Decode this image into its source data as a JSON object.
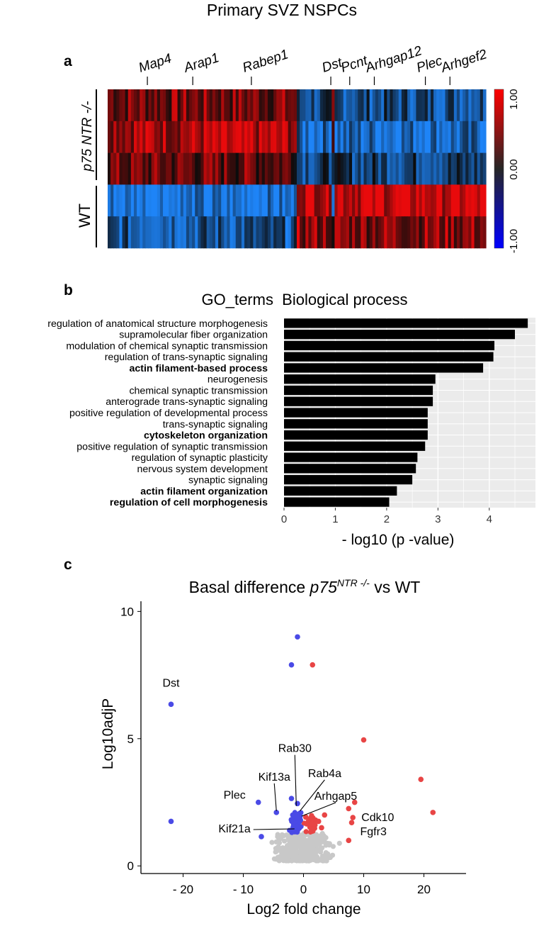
{
  "figure_title": "Primary SVZ NSPCs",
  "panel_labels": {
    "a": "a",
    "b": "b",
    "c": "c"
  },
  "chart_data": [
    {
      "type": "heatmap",
      "panel": "a",
      "title": "Primary SVZ NSPCs",
      "gene_labels": [
        "Map4",
        "Arap1",
        "Rabep1",
        "Dst",
        "Pcnt",
        "Arhgap12",
        "Plec",
        "Arhgef2"
      ],
      "gene_label_positions": [
        0.105,
        0.225,
        0.38,
        0.59,
        0.64,
        0.705,
        0.84,
        0.905
      ],
      "group_labels": [
        "p75 NTR -/-",
        "WT"
      ],
      "row_groups": [
        3,
        2
      ],
      "row_tone": [
        0.3,
        0.45,
        0.25,
        -0.55,
        -0.35
      ],
      "column_pattern": [
        {
          "from": 0.0,
          "to": 0.5,
          "sign": 1
        },
        {
          "from": 0.5,
          "to": 0.59,
          "sign": -1
        },
        {
          "from": 0.59,
          "to": 0.6,
          "sign": 0.5
        },
        {
          "from": 0.6,
          "to": 1.0,
          "sign": -1
        }
      ],
      "n_columns": 130,
      "colorbar": {
        "ticks": [
          "1.00",
          "0.00",
          "-1.00"
        ],
        "range": [
          -1,
          1
        ]
      }
    },
    {
      "type": "bar",
      "panel": "b",
      "title": "GO_terms  Biological process",
      "orientation": "horizontal",
      "categories": [
        "regulation of anatomical structure morphogenesis",
        "supramolecular fiber organization",
        "modulation of chemical synaptic transmission",
        "regulation of trans-synaptic signaling",
        "actin filament-based process",
        "neurogenesis",
        "chemical synaptic transmission",
        "anterograde trans-synaptic signaling",
        "positive regulation of developmental process",
        "trans-synaptic signaling",
        "cytoskeleton organization",
        "positive regulation of synaptic transmission",
        "regulation of synaptic plasticity",
        "nervous system development",
        "synaptic signaling",
        "actin filament organization",
        "regulation of cell morphogenesis"
      ],
      "bold": [
        false,
        false,
        false,
        false,
        true,
        false,
        false,
        false,
        false,
        false,
        true,
        false,
        false,
        false,
        false,
        true,
        true
      ],
      "values": [
        4.75,
        4.5,
        4.1,
        4.08,
        3.88,
        2.95,
        2.9,
        2.9,
        2.8,
        2.8,
        2.8,
        2.75,
        2.6,
        2.57,
        2.5,
        2.2,
        2.05
      ],
      "xlabel": "- log10 (p -value)",
      "xlim": [
        0,
        4.9
      ],
      "xticks": [
        0,
        1,
        2,
        3,
        4
      ],
      "bar_color": "#000000",
      "panel_background": "#ebebeb"
    },
    {
      "type": "scatter",
      "panel": "c",
      "title_prefix": "Basal difference ",
      "title_italic": "p75",
      "title_superscript": "NTR -/-",
      "title_suffix": " vs WT",
      "xlabel": "Log2 fold change",
      "ylabel": "Log10adjP",
      "xlim": [
        -27,
        27
      ],
      "ylim": [
        -0.3,
        10.4
      ],
      "xticks": [
        -20,
        -10,
        0,
        10,
        20
      ],
      "xtick_labels": [
        "- 20",
        "- 10",
        "0",
        "10",
        "20"
      ],
      "yticks": [
        0,
        5,
        10
      ],
      "colors": {
        "down": "#4a4ae6",
        "up": "#e84545",
        "ns": "#c8c8c8"
      },
      "blue_points": [
        [
          -1,
          9.0
        ],
        [
          -2,
          7.9
        ],
        [
          -22,
          6.35
        ],
        [
          -22,
          1.75
        ],
        [
          -7.5,
          2.5
        ],
        [
          -4.5,
          2.1
        ],
        [
          -2,
          2.65
        ],
        [
          -1,
          2.45
        ],
        [
          -7,
          1.15
        ],
        [
          -1.5,
          2.0
        ],
        [
          -0.5,
          1.8
        ]
      ],
      "red_points": [
        [
          1.5,
          7.9
        ],
        [
          10,
          4.95
        ],
        [
          19.5,
          3.4
        ],
        [
          21.5,
          2.1
        ],
        [
          8.5,
          2.5
        ],
        [
          7.5,
          2.25
        ],
        [
          3.5,
          2.0
        ],
        [
          8.2,
          1.9
        ],
        [
          8,
          1.7
        ],
        [
          2.5,
          1.75
        ],
        [
          3,
          1.5
        ],
        [
          7.5,
          1.0
        ]
      ],
      "dense_clusters": [
        {
          "color": "blue",
          "x_center": -1.2,
          "x_spread": 1.4,
          "y_min": 1.3,
          "y_max": 2.1,
          "count": 60
        },
        {
          "color": "red",
          "x_center": 1.3,
          "x_spread": 1.6,
          "y_min": 1.3,
          "y_max": 2.0,
          "count": 30
        },
        {
          "color": "ns",
          "x_center": 0,
          "x_spread": 6.5,
          "y_min": 0.2,
          "y_max": 1.3,
          "count": 400
        }
      ],
      "labeled_points": [
        {
          "name": "Dst",
          "x": -22,
          "y": 6.35
        },
        {
          "name": "Plec",
          "x": -7.5,
          "y": 2.5
        },
        {
          "name": "Kif13a",
          "x": -4.5,
          "y": 2.1
        },
        {
          "name": "Rab30",
          "x": -1.2,
          "y": 2.3
        },
        {
          "name": "Rab4a",
          "x": -0.6,
          "y": 2.1
        },
        {
          "name": "Arhgap5",
          "x": -0.3,
          "y": 1.9
        },
        {
          "name": "Kif21a",
          "x": -1.5,
          "y": 1.4
        },
        {
          "name": "Cdk10",
          "x": 8.2,
          "y": 1.9
        },
        {
          "name": "Fgfr3",
          "x": 8,
          "y": 1.35
        }
      ]
    }
  ]
}
